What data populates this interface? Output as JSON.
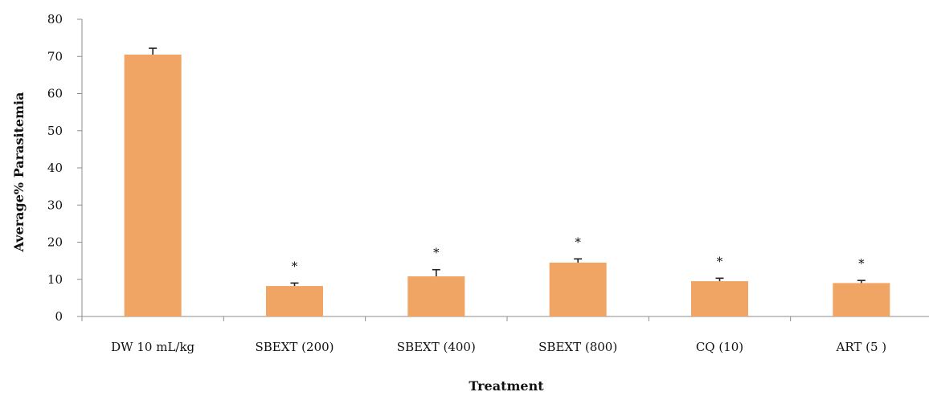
{
  "chart_data": {
    "type": "bar",
    "categories": [
      "DW 10 mL/kg",
      "SBEXT (200)",
      "SBEXT (400)",
      "SBEXT (800)",
      "CQ (10)",
      "ART (5 )"
    ],
    "values": [
      70.5,
      8.2,
      10.8,
      14.5,
      9.5,
      9.0
    ],
    "error": [
      1.7,
      0.8,
      1.8,
      1.0,
      0.8,
      0.7
    ],
    "significance": [
      "",
      "*",
      "*",
      "*",
      "*",
      "*"
    ],
    "title": "",
    "xlabel": "Treatment",
    "ylabel": "Average% Parasitemia",
    "ylim": [
      0,
      80
    ],
    "yticks": [
      0,
      10,
      20,
      30,
      40,
      50,
      60,
      70,
      80
    ],
    "bar_color": "#f0a564",
    "grid": false,
    "legend": "none"
  }
}
